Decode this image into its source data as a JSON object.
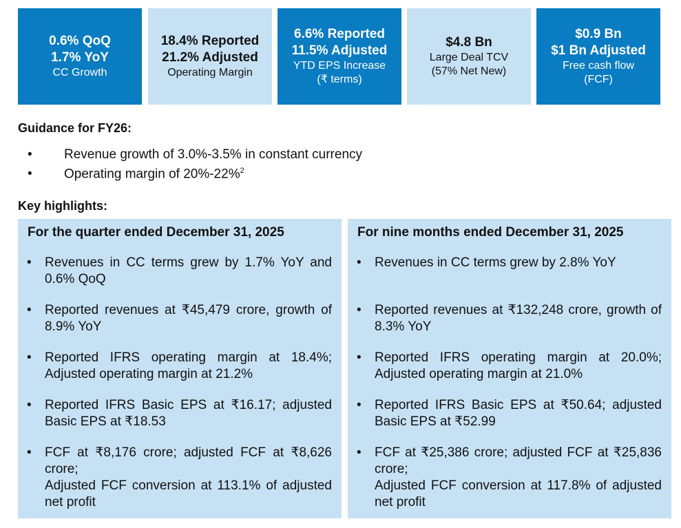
{
  "kpis": [
    {
      "theme": "dark",
      "lines": [
        {
          "text": "0.6% QoQ",
          "bold": true
        },
        {
          "text": "1.7% YoY",
          "bold": true
        },
        {
          "text": "CC Growth",
          "bold": false
        }
      ]
    },
    {
      "theme": "light",
      "lines": [
        {
          "text": "18.4% Reported",
          "bold": true
        },
        {
          "text": "21.2% Adjusted",
          "bold": true
        },
        {
          "text": "Operating Margin",
          "bold": false
        }
      ]
    },
    {
      "theme": "dark",
      "lines": [
        {
          "text": "6.6% Reported",
          "bold": true
        },
        {
          "text": "11.5% Adjusted",
          "bold": true
        },
        {
          "text": "YTD EPS Increase",
          "bold": false
        },
        {
          "text": "(₹ terms)",
          "bold": false
        }
      ]
    },
    {
      "theme": "light",
      "lines": [
        {
          "text": "$4.8 Bn",
          "bold": true
        },
        {
          "text": "Large Deal TCV",
          "bold": false
        },
        {
          "text": "(57% Net New)",
          "bold": false
        }
      ]
    },
    {
      "theme": "dark",
      "lines": [
        {
          "text": "$0.9 Bn",
          "bold": true
        },
        {
          "text": "$1 Bn Adjusted",
          "bold": true
        },
        {
          "text": "Free cash flow",
          "bold": false
        },
        {
          "text": "(FCF)",
          "bold": false
        }
      ]
    }
  ],
  "guidance": {
    "title": "Guidance for FY26:",
    "items": [
      {
        "text": "Revenue growth of 3.0%-3.5% in constant currency"
      },
      {
        "text": "Operating margin of 20%-22%",
        "superscript": "2"
      }
    ]
  },
  "highlights": {
    "title": "Key highlights:",
    "panels": [
      {
        "title": "For the quarter ended December 31, 2025",
        "items": [
          [
            "Revenues in CC terms grew by 1.7% YoY and 0.6% QoQ"
          ],
          [
            "Reported revenues at ₹45,479 crore, growth of 8.9% YoY"
          ],
          [
            "Reported IFRS operating margin at 18.4%; Adjusted operating margin at 21.2%"
          ],
          [
            "Reported IFRS Basic EPS at ₹16.17; adjusted Basic EPS at ₹18.53"
          ],
          [
            "FCF at ₹8,176 crore; adjusted FCF at ₹8,626 crore;",
            "Adjusted FCF conversion at 113.1% of adjusted net profit"
          ]
        ]
      },
      {
        "title": "For nine months ended December 31, 2025",
        "items": [
          [
            "Revenues in CC terms grew by 2.8% YoY"
          ],
          [
            "Reported revenues at ₹132,248 crore, growth of 8.3% YoY"
          ],
          [
            "Reported IFRS operating margin at 20.0%; Adjusted operating margin at 21.0%"
          ],
          [
            "Reported IFRS Basic EPS at ₹50.64; adjusted Basic EPS at ₹52.99"
          ],
          [
            "FCF at ₹25,386 crore; adjusted FCF at ₹25,836 crore;",
            "Adjusted FCF conversion at 117.8% of adjusted net profit"
          ]
        ]
      }
    ]
  }
}
